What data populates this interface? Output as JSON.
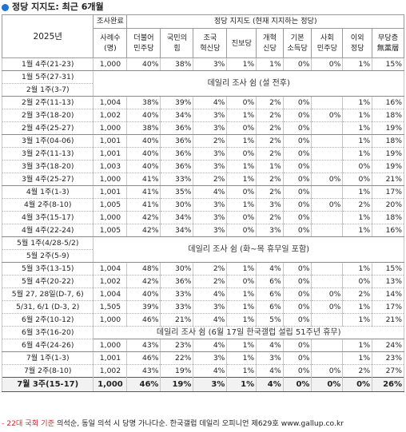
{
  "title": "정당 지지도: 최근 6개월",
  "header": {
    "year": "2025년",
    "sample_group": "조사완료",
    "sample_label": "사례수\n(명)",
    "party_group": "정당 지지도 (현재 지지하는 정당)",
    "parties": [
      "더불어\n민주당",
      "국민의\n힘",
      "조국\n혁신당",
      "진보당",
      "개혁\n신당",
      "기본\n소득당",
      "사회\n민주당",
      "이외\n정당",
      "무당층\n無黨層"
    ]
  },
  "rows": [
    {
      "period": "1월 4주(21-23)",
      "n": "1,000",
      "v": [
        "40%",
        "38%",
        "3%",
        "1%",
        "1%",
        "0%",
        "0%",
        "1%",
        "15%"
      ],
      "line": "solid"
    },
    {
      "period": "1월 5주(27-31)",
      "note": "데일리 조사 쉼 (설 전후)",
      "span": 2
    },
    {
      "period": "2월 1주(3-7)",
      "line": "solid"
    },
    {
      "period": "2월 2주(11-13)",
      "n": "1,004",
      "v": [
        "38%",
        "39%",
        "4%",
        "0%",
        "2%",
        "0%",
        "",
        "1%",
        "16%"
      ]
    },
    {
      "period": "2월 3주(18-20)",
      "n": "1,002",
      "v": [
        "40%",
        "34%",
        "3%",
        "1%",
        "2%",
        "0%",
        "0%",
        "1%",
        "18%"
      ]
    },
    {
      "period": "2월 4주(25-27)",
      "n": "1,000",
      "v": [
        "38%",
        "36%",
        "3%",
        "0%",
        "2%",
        "0%",
        "",
        "1%",
        "19%"
      ],
      "line": "solid"
    },
    {
      "period": "3월 1주(04-06)",
      "n": "1,001",
      "v": [
        "40%",
        "36%",
        "2%",
        "1%",
        "2%",
        "0%",
        "",
        "1%",
        "18%"
      ]
    },
    {
      "period": "3월 2주(11-13)",
      "n": "1,001",
      "v": [
        "40%",
        "36%",
        "3%",
        "0%",
        "2%",
        "0%",
        "",
        "1%",
        "19%"
      ]
    },
    {
      "period": "3월 3주(18-20)",
      "n": "1,003",
      "v": [
        "40%",
        "36%",
        "3%",
        "1%",
        "1%",
        "0%",
        "",
        "0%",
        "19%"
      ]
    },
    {
      "period": "3월 4주(25-27)",
      "n": "1,000",
      "v": [
        "41%",
        "33%",
        "2%",
        "1%",
        "2%",
        "0%",
        "0%",
        "0%",
        "21%"
      ],
      "line": "solid"
    },
    {
      "period": "4월 1주(1-3)",
      "n": "1,001",
      "v": [
        "41%",
        "35%",
        "4%",
        "0%",
        "2%",
        "0%",
        "",
        "1%",
        "17%"
      ]
    },
    {
      "period": "4월 2주(8-10)",
      "n": "1,005",
      "v": [
        "41%",
        "30%",
        "3%",
        "1%",
        "3%",
        "0%",
        "0%",
        "2%",
        "20%"
      ]
    },
    {
      "period": "4월 3주(15-17)",
      "n": "1,000",
      "v": [
        "42%",
        "34%",
        "3%",
        "0%",
        "2%",
        "0%",
        "",
        "1%",
        "18%"
      ]
    },
    {
      "period": "4월 4주(22-24)",
      "n": "1,005",
      "v": [
        "42%",
        "34%",
        "3%",
        "0%",
        "3%",
        "0%",
        "",
        "1%",
        "16%"
      ],
      "line": "solid"
    },
    {
      "period": "5월 1주(4/28-5/2)",
      "note": "데일리 조사 쉼 (화~목 휴무일 포함)",
      "span": 2
    },
    {
      "period": "5월 2주(5-9)",
      "line": "solid"
    },
    {
      "period": "5월 3주(13-15)",
      "n": "1,004",
      "v": [
        "48%",
        "30%",
        "2%",
        "1%",
        "4%",
        "0%",
        "",
        "1%",
        "15%"
      ]
    },
    {
      "period": "5월 4주(20-22)",
      "n": "1,002",
      "v": [
        "42%",
        "36%",
        "2%",
        "0%",
        "6%",
        "0%",
        "",
        "0%",
        "13%"
      ]
    },
    {
      "period": "5월 27, 28일(D-7, 6)",
      "n": "1,004",
      "v": [
        "40%",
        "33%",
        "4%",
        "1%",
        "6%",
        "0%",
        "0%",
        "2%",
        "14%"
      ]
    },
    {
      "period": "5/31, 6/1 (D-3, 2)",
      "n": "1,505",
      "v": [
        "39%",
        "33%",
        "3%",
        "1%",
        "6%",
        "0%",
        "0%",
        "1%",
        "17%"
      ]
    },
    {
      "period": "6월 2주(10-12)",
      "n": "1,000",
      "v": [
        "46%",
        "21%",
        "4%",
        "1%",
        "5%",
        "0%",
        "",
        "1%",
        "21%"
      ]
    },
    {
      "period": "6월 3주(16-20)",
      "note": "데일리 조사 쉼 (6월 17일 한국갤럽 설립 51주년 휴무)",
      "span": 1
    },
    {
      "period": "6월 4주(24-26)",
      "n": "1,000",
      "v": [
        "43%",
        "23%",
        "4%",
        "1%",
        "4%",
        "0%",
        "",
        "1%",
        "24%"
      ],
      "line": "solid"
    },
    {
      "period": "7월 1주(1-3)",
      "n": "1,001",
      "v": [
        "46%",
        "22%",
        "3%",
        "1%",
        "3%",
        "0%",
        "",
        "1%",
        "23%"
      ]
    },
    {
      "period": "7월 2주(8-10)",
      "n": "1,002",
      "v": [
        "43%",
        "19%",
        "4%",
        "1%",
        "4%",
        "0%",
        "0%",
        "2%",
        "27%"
      ]
    }
  ],
  "last_row": {
    "period": "7월 3주(15-17)",
    "n": "1,000",
    "v": [
      "46%",
      "19%",
      "3%",
      "1%",
      "4%",
      "0%",
      "0%",
      "0%",
      "26%"
    ]
  },
  "footnote_red": "- 22대 국회 기준",
  "footnote_rest": " 의석순, 동일 의석 시 당명 가나다순. 한국갤럽 데일리 오피니언 제629호 www.gallup.co.kr",
  "colors": {
    "accent": "#1e73d6",
    "footnote_red": "#c62a2a"
  }
}
